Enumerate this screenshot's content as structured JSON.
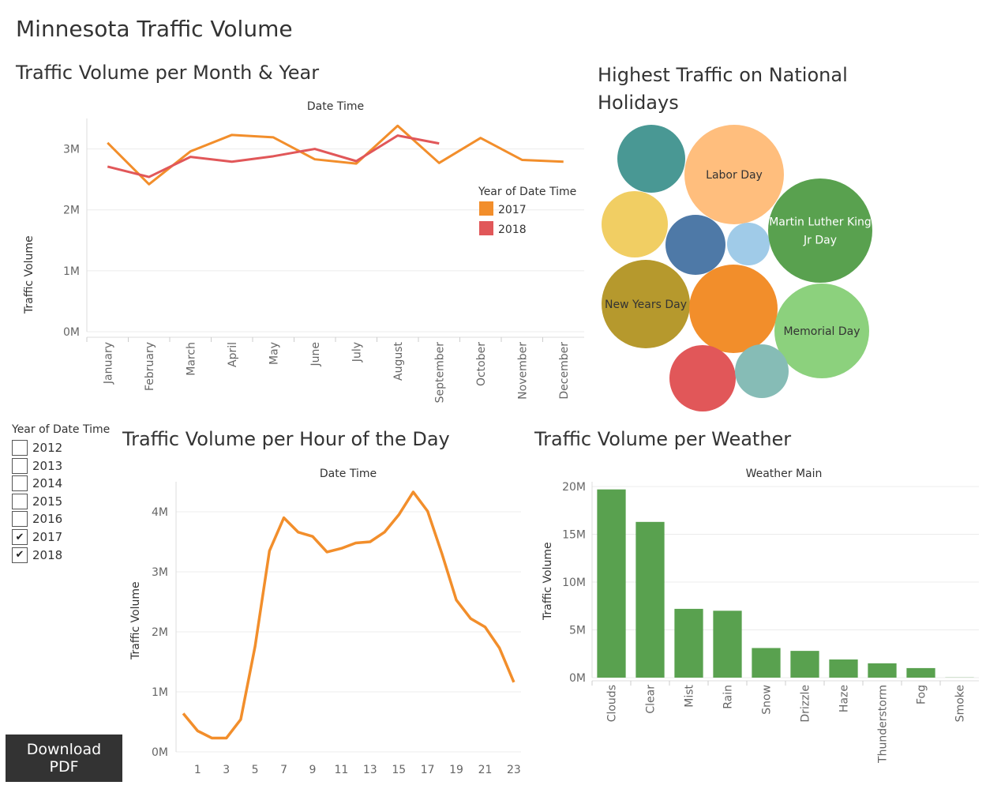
{
  "dashboard": {
    "title": "Minnesota Traffic Volume"
  },
  "download": {
    "label": "Download PDF"
  },
  "filter": {
    "title": "Year of Date Time",
    "items": [
      {
        "label": "2012",
        "checked": false
      },
      {
        "label": "2013",
        "checked": false
      },
      {
        "label": "2014",
        "checked": false
      },
      {
        "label": "2015",
        "checked": false
      },
      {
        "label": "2016",
        "checked": false
      },
      {
        "label": "2017",
        "checked": true
      },
      {
        "label": "2018",
        "checked": true
      }
    ],
    "check_glyph": "✔"
  },
  "chart_data": [
    {
      "type": "line",
      "title": "Traffic Volume per Month & Year",
      "xlabel": "Date Time",
      "ylabel": "Traffic Volume",
      "categories": [
        "January",
        "February",
        "March",
        "April",
        "May",
        "June",
        "July",
        "August",
        "September",
        "October",
        "November",
        "December"
      ],
      "ylim": [
        0,
        3500000
      ],
      "yticks": [
        0,
        1000000,
        2000000,
        3000000
      ],
      "ytick_labels": [
        "0M",
        "1M",
        "2M",
        "3M"
      ],
      "grid": true,
      "legend": {
        "title": "Year of Date Time",
        "placement": "right"
      },
      "series": [
        {
          "name": "2017",
          "color": "#F28E2B",
          "values": [
            3100000,
            2420000,
            2960000,
            3230000,
            3190000,
            2830000,
            2760000,
            3380000,
            2770000,
            3180000,
            2820000,
            2790000
          ]
        },
        {
          "name": "2018",
          "color": "#E15759",
          "values": [
            2710000,
            2540000,
            2870000,
            2790000,
            2880000,
            3000000,
            2800000,
            3220000,
            3090000,
            null,
            null,
            null
          ]
        }
      ]
    },
    {
      "type": "bubble",
      "title": "Highest Traffic on National Holidays",
      "bubbles": [
        {
          "label": "",
          "color": "#499894",
          "value": 0.56
        },
        {
          "label": "Labor Day",
          "color": "#FFBE7D",
          "value": 1.0
        },
        {
          "label": "",
          "color": "#F1CE63",
          "value": 0.48
        },
        {
          "label": "",
          "color": "#4E79A7",
          "value": 0.42
        },
        {
          "label": "",
          "color": "#A0CBE8",
          "value": 0.21
        },
        {
          "label": "Martin Luther King Jr Day",
          "color": "#59A14F",
          "value": 1.1
        },
        {
          "label": "New Years Day",
          "color": "#B6992D",
          "value": 0.77
        },
        {
          "label": "",
          "color": "#F28E2B",
          "value": 0.77
        },
        {
          "label": "Memorial Day",
          "color": "#8CD17D",
          "value": 0.9
        },
        {
          "label": "",
          "color": "#E15759",
          "value": 0.43
        },
        {
          "label": "",
          "color": "#86BCB6",
          "value": 0.28
        }
      ]
    },
    {
      "type": "line",
      "title": "Traffic Volume per Hour of the Day",
      "xlabel": "Date Time",
      "ylabel": "Traffic Volume",
      "x": [
        0,
        1,
        2,
        3,
        4,
        5,
        6,
        7,
        8,
        9,
        10,
        11,
        12,
        13,
        14,
        15,
        16,
        17,
        18,
        19,
        20,
        21,
        22,
        23
      ],
      "xtick_labels": [
        "1",
        "3",
        "5",
        "7",
        "9",
        "11",
        "13",
        "15",
        "17",
        "19",
        "21",
        "23"
      ],
      "ylim": [
        0,
        4500000
      ],
      "yticks": [
        0,
        1000000,
        2000000,
        3000000,
        4000000
      ],
      "ytick_labels": [
        "0M",
        "1M",
        "2M",
        "3M",
        "4M"
      ],
      "grid": true,
      "series": [
        {
          "color": "#F28E2B",
          "values": [
            640000,
            350000,
            230000,
            230000,
            540000,
            1760000,
            3350000,
            3900000,
            3660000,
            3590000,
            3330000,
            3390000,
            3480000,
            3500000,
            3660000,
            3950000,
            4330000,
            4010000,
            3300000,
            2530000,
            2220000,
            2080000,
            1730000,
            1160000
          ]
        }
      ]
    },
    {
      "type": "bar",
      "title": "Traffic Volume per Weather",
      "xlabel": "Weather Main",
      "ylabel": "Traffic Volume",
      "categories": [
        "Clouds",
        "Clear",
        "Mist",
        "Rain",
        "Snow",
        "Drizzle",
        "Haze",
        "Thunderstorm",
        "Fog",
        "Smoke"
      ],
      "values": [
        19700000,
        16300000,
        7200000,
        7000000,
        3100000,
        2800000,
        1900000,
        1500000,
        1000000,
        20000
      ],
      "ylim": [
        0,
        20500000
      ],
      "yticks": [
        0,
        5000000,
        10000000,
        15000000,
        20000000
      ],
      "ytick_labels": [
        "0M",
        "5M",
        "10M",
        "15M",
        "20M"
      ],
      "grid": true,
      "color": "#59A14F"
    }
  ]
}
